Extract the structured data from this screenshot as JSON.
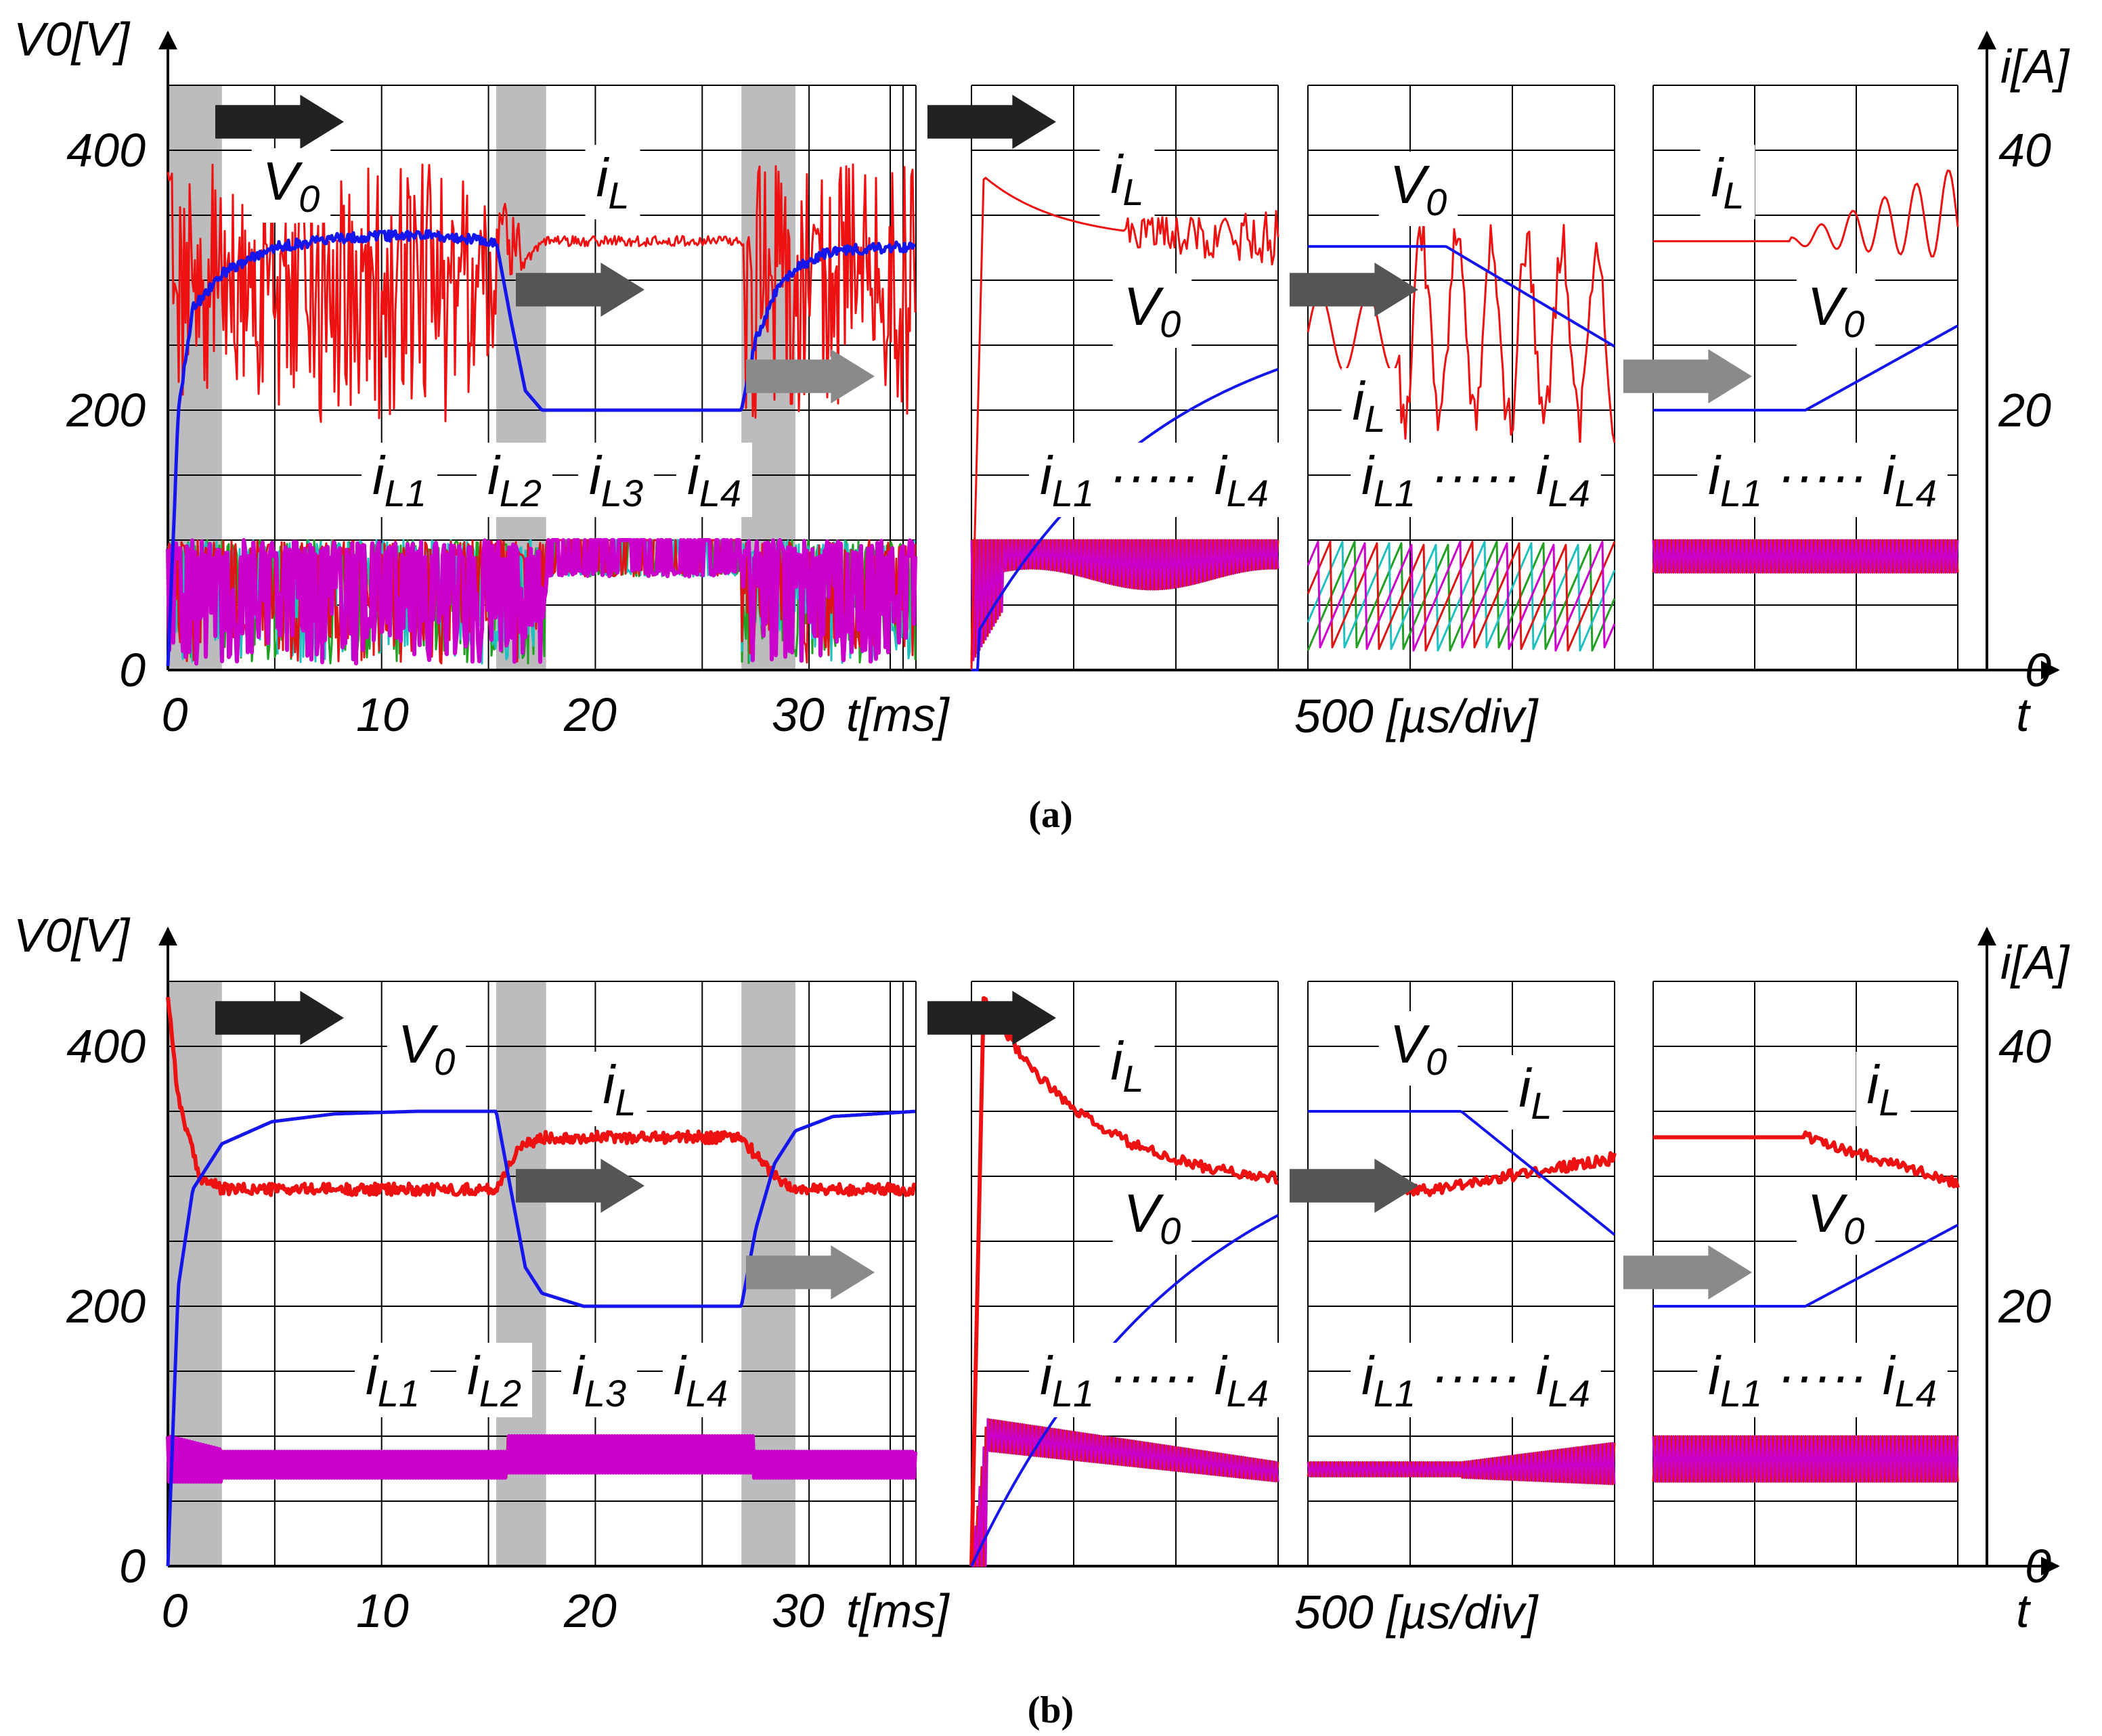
{
  "chart_data": [
    {
      "type": "line",
      "caption": "(a)",
      "left_axis_label": "V0[V]",
      "right_axis_label": "i[A]",
      "left_ticks": [
        "0",
        "200",
        "400"
      ],
      "right_ticks": [
        "0",
        "20",
        "40"
      ],
      "time_ticks": [
        "0",
        "10",
        "20",
        "30"
      ],
      "time_unit_label": "t[ms]",
      "zoom_scale_label": "500 [µs/div]",
      "right_time_label": "t",
      "ylim_voltage": [
        0,
        450
      ],
      "ylim_current": [
        0,
        45
      ],
      "xlim_ms": [
        0,
        36
      ],
      "shaded_intervals_ms": [
        [
          0,
          2.6
        ],
        [
          15.8,
          18.2
        ],
        [
          27.6,
          30.2
        ]
      ],
      "annotations": [
        "V0",
        "iL",
        "iL1",
        "iL2",
        "iL3",
        "iL4"
      ],
      "zoom_panel_annotations": [
        "iL",
        "V0",
        "iL1 ····· iL4"
      ],
      "series": [
        {
          "name": "V0",
          "color": "#1515ee",
          "unit": "V",
          "x_ms": [
            0,
            0.5,
            1.2,
            2.6,
            5,
            8,
            12,
            15.8,
            16.5,
            17.2,
            18,
            27.6,
            28.3,
            29.2,
            30.2,
            32,
            36
          ],
          "values": [
            0,
            200,
            278,
            305,
            325,
            332,
            335,
            330,
            270,
            215,
            200,
            200,
            255,
            290,
            310,
            323,
            326
          ]
        },
        {
          "name": "iL",
          "color": "#ee1111",
          "unit": "A",
          "behavior": "heavily oscillating around 29 A (approx. 18–38 A) in shaded/PI intervals; flat 33 A otherwise",
          "x_ms": [
            0,
            16,
            18,
            27.6,
            30,
            36
          ],
          "values": [
            38,
            29,
            33,
            33,
            29,
            29
          ]
        },
        {
          "name": "iL1...iL4",
          "color": "#cc00cc",
          "unit": "A",
          "behavior": "phase currents oscillating between ~0.5 A and 10 A; steady 7–10 A between 18 and 27.6 ms",
          "values": [
            0.5,
            10
          ]
        }
      ]
    },
    {
      "type": "line",
      "caption": "(b)",
      "left_axis_label": "V0[V]",
      "right_axis_label": "i[A]",
      "left_ticks": [
        "0",
        "200",
        "400"
      ],
      "right_ticks": [
        "0",
        "20",
        "40"
      ],
      "time_ticks": [
        "0",
        "10",
        "20",
        "30"
      ],
      "time_unit_label": "t[ms]",
      "zoom_scale_label": "500 [µs/div]",
      "right_time_label": "t",
      "ylim_voltage": [
        0,
        450
      ],
      "ylim_current": [
        0,
        45
      ],
      "xlim_ms": [
        0,
        36
      ],
      "shaded_intervals_ms": [
        [
          0,
          2.6
        ],
        [
          15.8,
          18.2
        ],
        [
          27.6,
          30.2
        ]
      ],
      "annotations": [
        "V0",
        "iL",
        "iL1",
        "iL2",
        "iL3",
        "iL4"
      ],
      "zoom_panel_annotations": [
        "iL",
        "V0",
        "iL1 ····· iL4"
      ],
      "series": [
        {
          "name": "V0",
          "color": "#1515ee",
          "unit": "V",
          "x_ms": [
            0,
            0.5,
            1.2,
            2.6,
            5,
            8,
            12,
            15.8,
            16.5,
            17.2,
            18,
            20,
            27.6,
            28.3,
            29.2,
            30.2,
            32,
            36
          ],
          "values": [
            0,
            215,
            290,
            325,
            342,
            348,
            350,
            350,
            290,
            230,
            210,
            200,
            200,
            260,
            310,
            335,
            346,
            350
          ]
        },
        {
          "name": "iL",
          "color": "#ee1111",
          "unit": "A",
          "x_ms": [
            0,
            0.5,
            1.5,
            2.6,
            8,
            15.8,
            16.8,
            18,
            27.6,
            28.6,
            30,
            36
          ],
          "values": [
            44,
            36,
            30,
            29,
            29,
            29,
            32,
            33,
            33,
            31,
            29,
            29
          ]
        },
        {
          "name": "iL1...iL4",
          "color": "#cc00cc",
          "unit": "A",
          "behavior": "phase currents in narrow band ~6–9 A (approx. 7–10 A between 16 and 28 ms)",
          "values": [
            6,
            10
          ]
        }
      ]
    }
  ]
}
